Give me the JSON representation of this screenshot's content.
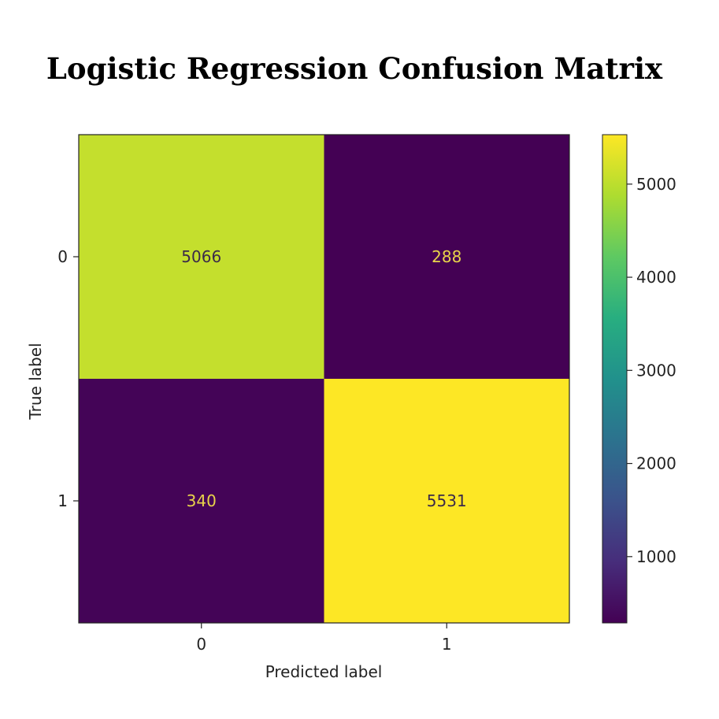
{
  "chart_data": {
    "type": "heatmap",
    "title": "Logistic Regression Confusion Matrix",
    "xlabel": "Predicted label",
    "ylabel": "True label",
    "x_categories": [
      "0",
      "1"
    ],
    "y_categories": [
      "0",
      "1"
    ],
    "matrix": [
      [
        5066,
        288
      ],
      [
        340,
        5531
      ]
    ],
    "colormap": "viridis",
    "colorbar": {
      "range": [
        288,
        5531
      ],
      "ticks": [
        1000,
        2000,
        3000,
        4000,
        5000
      ],
      "tick_labels": [
        "1000",
        "2000",
        "3000",
        "4000",
        "5000"
      ]
    },
    "grid": false
  }
}
